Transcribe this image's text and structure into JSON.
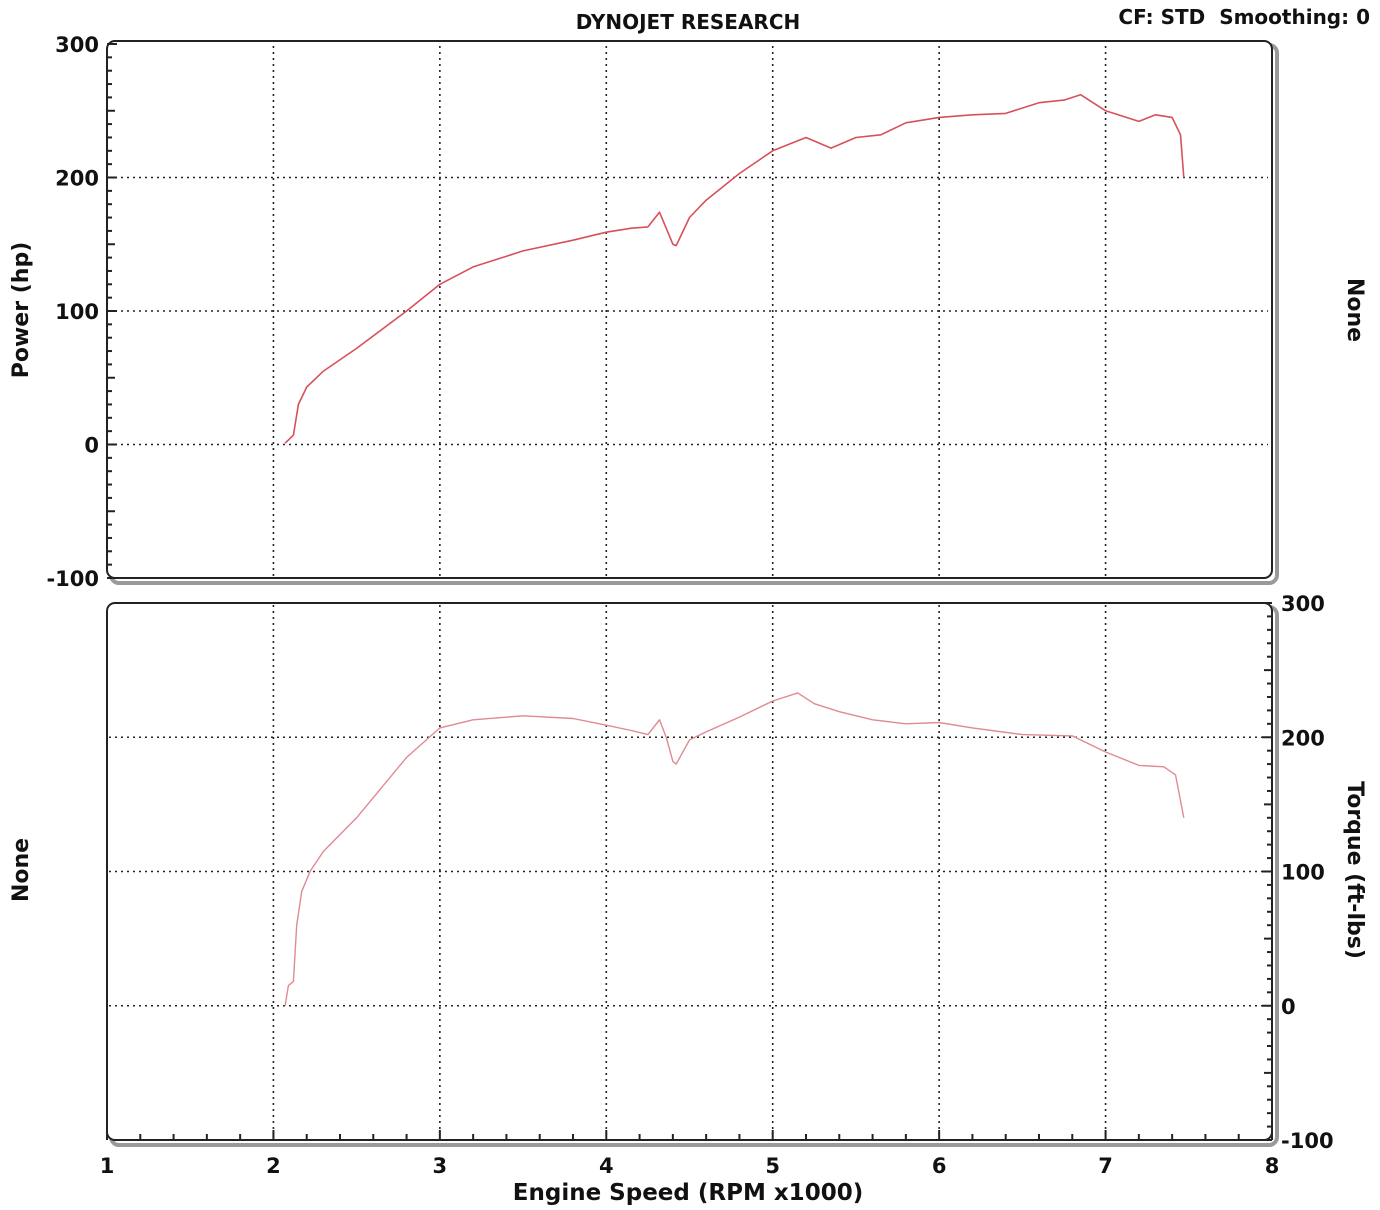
{
  "header": {
    "title": "DYNOJET RESEARCH",
    "settings": "CF: STD  Smoothing: 0"
  },
  "colors": {
    "power_line": "#d8505c",
    "torque_line": "#e08a92",
    "frame": "#222222",
    "frame_shadow": "#9a9a9a",
    "grid": "#222222"
  },
  "chart_data": [
    {
      "type": "line",
      "title": "DYNOJET RESEARCH",
      "xlabel": "Engine Speed (RPM x1000)",
      "ylabel": "Power (hp)",
      "right_label": "None",
      "xlim": [
        1,
        8
      ],
      "ylim": [
        -100,
        300
      ],
      "x_ticks": [
        "1",
        "2",
        "3",
        "4",
        "5",
        "6",
        "7",
        "8"
      ],
      "y_ticks": [
        "300",
        "200",
        "100",
        "0",
        "-100"
      ],
      "grid": true,
      "series": [
        {
          "values_x": [
            2.07,
            2.12,
            2.15,
            2.2,
            2.3,
            2.5,
            2.8,
            3.0,
            3.2,
            3.5,
            3.8,
            4.0,
            4.15,
            4.25,
            4.32,
            4.36,
            4.4,
            4.42,
            4.5,
            4.6,
            4.8,
            5.0,
            5.2,
            5.35,
            5.5,
            5.65,
            5.8,
            6.0,
            6.2,
            6.4,
            6.6,
            6.75,
            6.85,
            7.0,
            7.2,
            7.3,
            7.4,
            7.45,
            7.47
          ],
          "values_y": [
            1,
            7,
            30,
            43,
            55,
            72,
            100,
            120,
            133,
            145,
            153,
            159,
            162,
            163,
            174,
            162,
            150,
            149,
            170,
            183,
            203,
            220,
            230,
            222,
            230,
            232,
            241,
            245,
            247,
            248,
            256,
            258,
            262,
            250,
            242,
            247,
            245,
            232,
            200
          ]
        }
      ]
    },
    {
      "type": "line",
      "xlabel": "Engine Speed (RPM x1000)",
      "ylabel": "Torque (ft-lbs)",
      "left_label": "None",
      "xlim": [
        1,
        8
      ],
      "ylim": [
        -100,
        300
      ],
      "x_ticks": [
        "1",
        "2",
        "3",
        "4",
        "5",
        "6",
        "7",
        "8"
      ],
      "y_ticks": [
        "300",
        "200",
        "100",
        "0",
        "-100"
      ],
      "grid": true,
      "series": [
        {
          "values_x": [
            2.07,
            2.09,
            2.12,
            2.14,
            2.17,
            2.22,
            2.3,
            2.5,
            2.8,
            3.0,
            3.2,
            3.5,
            3.8,
            4.0,
            4.15,
            4.25,
            4.32,
            4.36,
            4.4,
            4.42,
            4.5,
            4.6,
            4.8,
            5.0,
            5.15,
            5.25,
            5.4,
            5.6,
            5.8,
            6.0,
            6.2,
            6.5,
            6.8,
            7.0,
            7.2,
            7.35,
            7.42,
            7.47
          ],
          "values_y": [
            0,
            15,
            18,
            60,
            85,
            100,
            115,
            140,
            185,
            207,
            213,
            216,
            214,
            209,
            205,
            202,
            213,
            200,
            182,
            180,
            198,
            204,
            215,
            227,
            233,
            225,
            219,
            213,
            210,
            211,
            207,
            202,
            201,
            189,
            179,
            178,
            172,
            140
          ]
        }
      ]
    }
  ]
}
